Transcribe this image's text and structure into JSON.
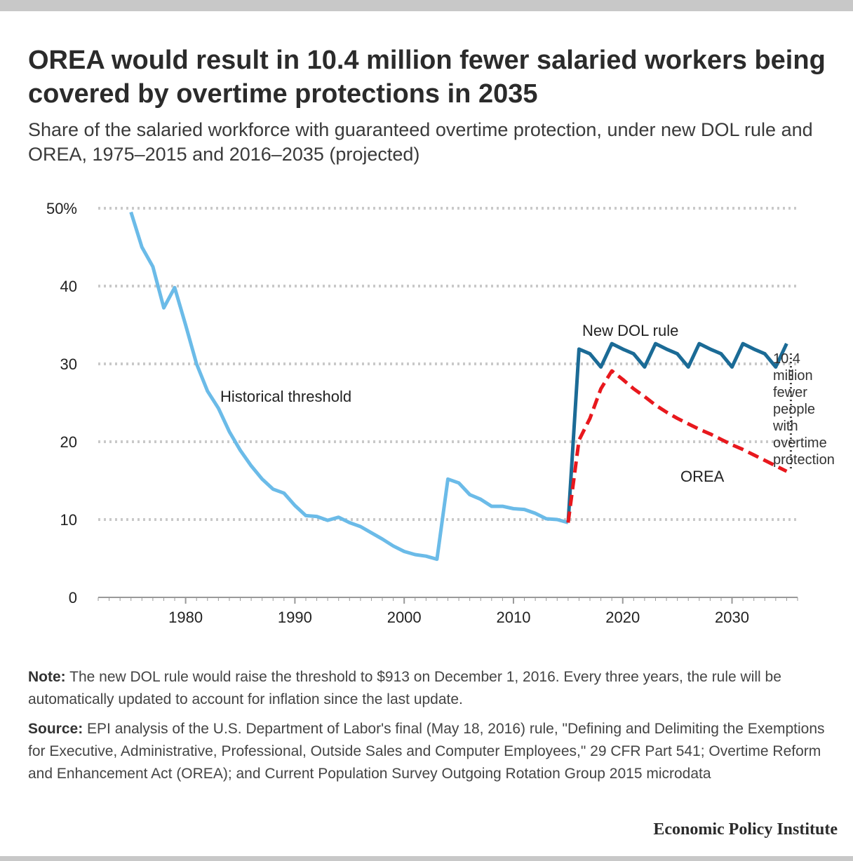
{
  "header": {
    "title": "OREA would result in 10.4 million fewer salaried workers being covered by overtime protections in 2035",
    "subtitle": "Share of the salaried workforce with guaranteed overtime protection, under new DOL rule and OREA, 1975–2015 and 2016–2035 (projected)"
  },
  "chart_data": {
    "type": "line",
    "title": "",
    "xlabel": "",
    "ylabel": "",
    "xlim": [
      1972,
      2036
    ],
    "ylim": [
      0,
      50
    ],
    "x_ticks": [
      1980,
      1990,
      2000,
      2010,
      2020,
      2030
    ],
    "y_ticks": [
      0,
      10,
      20,
      30,
      40,
      50
    ],
    "y_tick_labels": [
      "0",
      "10",
      "20",
      "30",
      "40",
      "50%"
    ],
    "grid": true,
    "series": [
      {
        "name": "Historical threshold",
        "color": "#6bbbe8",
        "dashed": false,
        "x": [
          1975,
          1976,
          1977,
          1978,
          1979,
          1980,
          1981,
          1982,
          1983,
          1984,
          1985,
          1986,
          1987,
          1988,
          1989,
          1990,
          1991,
          1992,
          1993,
          1994,
          1995,
          1996,
          1997,
          1998,
          1999,
          2000,
          2001,
          2002,
          2003,
          2004,
          2005,
          2006,
          2007,
          2008,
          2009,
          2010,
          2011,
          2012,
          2013,
          2014,
          2015
        ],
        "values": [
          49.5,
          45.0,
          42.5,
          37.2,
          39.8,
          35.0,
          30.0,
          26.5,
          24.3,
          21.3,
          18.9,
          16.9,
          15.2,
          13.9,
          13.4,
          11.8,
          10.5,
          10.4,
          9.9,
          10.3,
          9.6,
          9.1,
          8.3,
          7.5,
          6.6,
          5.9,
          5.5,
          5.3,
          4.9,
          15.2,
          14.7,
          13.2,
          12.6,
          11.7,
          11.7,
          11.4,
          11.3,
          10.8,
          10.1,
          10.0,
          9.6
        ]
      },
      {
        "name": "New DOL rule",
        "color": "#1b6b96",
        "dashed": false,
        "x": [
          2015,
          2016,
          2017,
          2018,
          2019,
          2020,
          2021,
          2022,
          2023,
          2024,
          2025,
          2026,
          2027,
          2028,
          2029,
          2030,
          2031,
          2032,
          2033,
          2034,
          2035
        ],
        "values": [
          9.6,
          31.9,
          31.3,
          29.6,
          32.6,
          31.9,
          31.3,
          29.6,
          32.6,
          31.9,
          31.3,
          29.6,
          32.6,
          31.9,
          31.3,
          29.6,
          32.6,
          31.9,
          31.3,
          29.6,
          32.6
        ]
      },
      {
        "name": "OREA",
        "color": "#e8181d",
        "dashed": true,
        "x": [
          2015,
          2016,
          2017,
          2018,
          2019,
          2020,
          2021,
          2022,
          2023,
          2024,
          2025,
          2026,
          2027,
          2028,
          2029,
          2030,
          2031,
          2032,
          2033,
          2034,
          2035
        ],
        "values": [
          9.6,
          20.2,
          23.0,
          26.8,
          29.1,
          28.0,
          26.8,
          25.8,
          24.7,
          23.8,
          23.0,
          22.3,
          21.6,
          21.0,
          20.3,
          19.6,
          19.0,
          18.3,
          17.6,
          16.9,
          16.2
        ]
      }
    ],
    "annotations": {
      "historical_label": "Historical threshold",
      "dol_label": "New DOL rule",
      "orea_label": "OREA",
      "gap_label_lines": [
        "10.4",
        "million",
        "fewer",
        "people",
        "with",
        "overtime",
        "protection"
      ]
    }
  },
  "footer": {
    "note_lead": "Note:",
    "note_text": " The new DOL rule would raise the threshold to $913 on December 1, 2016. Every three years, the rule will be automatically updated to account for inflation since the last update.",
    "source_lead": "Source:",
    "source_text": " EPI analysis of the U.S. Department of Labor's final (May 18, 2016) rule, \"Defining and Delimiting the Exemptions for Executive, Administrative, Professional, Outside Sales and Computer Employees,\" 29 CFR Part 541; Overtime Reform and Enhancement Act (OREA); and Current Population Survey Outgoing Rotation Group 2015 microdata",
    "brand": "Economic Policy Institute"
  }
}
